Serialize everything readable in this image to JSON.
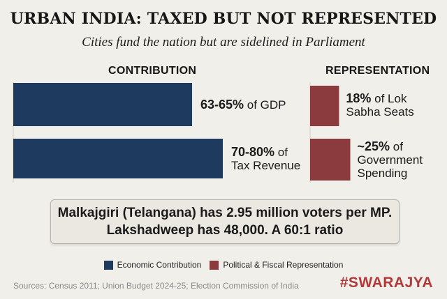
{
  "header": {
    "title": "URBAN INDIA: TAXED BUT NOT REPRESENTED",
    "subtitle": "Cities fund the nation but are sidelined in Parliament"
  },
  "chart_data": {
    "type": "bar",
    "colors": {
      "contribution": "#1f3a5f",
      "representation": "#8b3a3d"
    },
    "panels": [
      {
        "heading": "CONTRIBUTION",
        "series": "Economic Contribution",
        "bars": [
          {
            "bold": "63-65%",
            "rest": " of GDP",
            "value": 64
          },
          {
            "bold": "70-80%",
            "rest": " of Tax Revenue",
            "value": 75
          }
        ]
      },
      {
        "heading": "REPRESENTATION",
        "series": "Political & Fiscal Representation",
        "bars": [
          {
            "bold": "18%",
            "rest": " of Lok Sabha Seats",
            "value": 18
          },
          {
            "bold": "~25%",
            "rest": " of Government Spending",
            "value": 25
          }
        ]
      }
    ]
  },
  "callout": {
    "line1": "Malkajgiri (Telangana) has 2.95 million voters per MP.",
    "line2": "Lakshadweep has 48,000. A 60:1 ratio"
  },
  "legend": [
    {
      "label": "Economic Contribution",
      "color": "#1f3a5f"
    },
    {
      "label": "Political & Fiscal Representation",
      "color": "#8b3a3d"
    }
  ],
  "footer": {
    "sources": "Sources: Census 2011; Union Budget 2024-25; Election Commission of India",
    "brand": "#SWARAJYA"
  }
}
